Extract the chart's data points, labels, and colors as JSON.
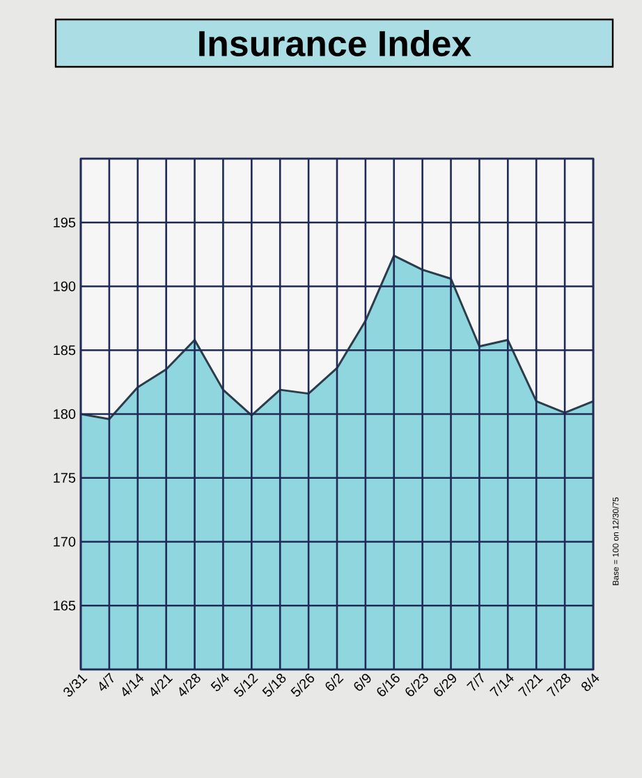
{
  "chart_data": {
    "type": "area",
    "title": "Insurance Index",
    "categories": [
      "3/31",
      "4/7",
      "4/14",
      "4/21",
      "4/28",
      "5/4",
      "5/12",
      "5/18",
      "5/26",
      "6/2",
      "6/9",
      "6/16",
      "6/23",
      "6/29",
      "7/7",
      "7/14",
      "7/21",
      "7/28",
      "8/4"
    ],
    "series": [
      {
        "color": "#8fd6df",
        "values": [
          180.0,
          179.6,
          182.1,
          183.5,
          185.8,
          181.9,
          179.9,
          181.9,
          181.6,
          183.6,
          187.3,
          192.4,
          191.3,
          190.6,
          185.3,
          185.8,
          181.0,
          180.1,
          181.0
        ]
      }
    ],
    "ylim": [
      160,
      200
    ],
    "yticks": [
      {
        "value": 160,
        "label": null
      },
      165,
      170,
      175,
      180,
      185,
      190,
      195,
      {
        "value": 200,
        "label": null
      }
    ],
    "grid": true,
    "annotations": [
      "Base = 100 on 12/30/75"
    ]
  }
}
